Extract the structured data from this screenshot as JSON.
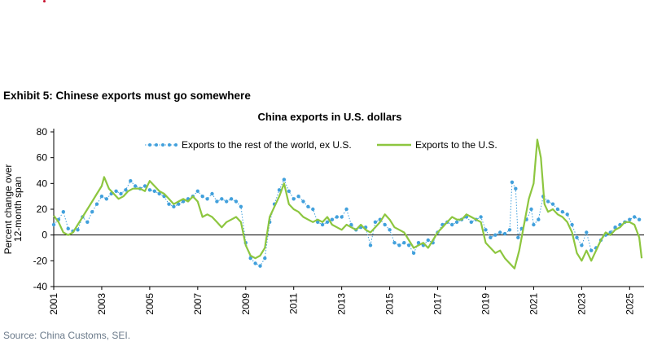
{
  "exhibit_title": "Exhibit 5: Chinese exports must go somewhere",
  "source": "Source: China Customs, SEI.",
  "colors": {
    "row_series": "#41a0dc",
    "us_series": "#8dc63f",
    "accent_dot": "#c8102e"
  },
  "chart_data": {
    "type": "line",
    "title": "China exports in U.S. dollars",
    "ylabel": "Percent change over 12-month span",
    "ylabel_lines": [
      "Percent change over",
      "12-month span"
    ],
    "ylim": [
      -40,
      80
    ],
    "yticks": [
      80,
      60,
      40,
      20,
      0,
      -20,
      -40
    ],
    "xlim": [
      2001,
      2025.6
    ],
    "xticks": [
      "2001",
      "2003",
      "2005",
      "2007",
      "2009",
      "2011",
      "2013",
      "2015",
      "2017",
      "2019",
      "2021",
      "2023",
      "2025"
    ],
    "grid": false,
    "legend_position": "top",
    "series": [
      {
        "name": "Exports to the rest of the world, ex U.S.",
        "style": "dotted-markers",
        "color": "#41a0dc",
        "points": [
          [
            2001.0,
            8
          ],
          [
            2001.2,
            12
          ],
          [
            2001.4,
            18
          ],
          [
            2001.6,
            5
          ],
          [
            2001.8,
            3
          ],
          [
            2002.0,
            4
          ],
          [
            2002.2,
            14
          ],
          [
            2002.4,
            10
          ],
          [
            2002.6,
            18
          ],
          [
            2002.8,
            24
          ],
          [
            2003.0,
            30
          ],
          [
            2003.2,
            28
          ],
          [
            2003.4,
            32
          ],
          [
            2003.6,
            34
          ],
          [
            2003.8,
            32
          ],
          [
            2004.0,
            35
          ],
          [
            2004.2,
            42
          ],
          [
            2004.4,
            38
          ],
          [
            2004.6,
            36
          ],
          [
            2004.8,
            38
          ],
          [
            2005.0,
            35
          ],
          [
            2005.2,
            34
          ],
          [
            2005.4,
            32
          ],
          [
            2005.6,
            30
          ],
          [
            2005.8,
            24
          ],
          [
            2006.0,
            22
          ],
          [
            2006.2,
            24
          ],
          [
            2006.4,
            26
          ],
          [
            2006.6,
            28
          ],
          [
            2006.8,
            30
          ],
          [
            2007.0,
            34
          ],
          [
            2007.2,
            30
          ],
          [
            2007.4,
            28
          ],
          [
            2007.6,
            32
          ],
          [
            2007.8,
            26
          ],
          [
            2008.0,
            28
          ],
          [
            2008.2,
            26
          ],
          [
            2008.4,
            28
          ],
          [
            2008.6,
            26
          ],
          [
            2008.8,
            22
          ],
          [
            2009.0,
            -6
          ],
          [
            2009.2,
            -18
          ],
          [
            2009.4,
            -22
          ],
          [
            2009.6,
            -24
          ],
          [
            2009.8,
            -18
          ],
          [
            2010.0,
            10
          ],
          [
            2010.2,
            24
          ],
          [
            2010.4,
            35
          ],
          [
            2010.6,
            43
          ],
          [
            2010.8,
            34
          ],
          [
            2011.0,
            28
          ],
          [
            2011.2,
            30
          ],
          [
            2011.4,
            26
          ],
          [
            2011.6,
            22
          ],
          [
            2011.8,
            20
          ],
          [
            2012.0,
            10
          ],
          [
            2012.2,
            8
          ],
          [
            2012.4,
            10
          ],
          [
            2012.6,
            12
          ],
          [
            2012.8,
            14
          ],
          [
            2013.0,
            14
          ],
          [
            2013.2,
            20
          ],
          [
            2013.4,
            8
          ],
          [
            2013.6,
            4
          ],
          [
            2013.8,
            6
          ],
          [
            2014.0,
            6
          ],
          [
            2014.2,
            -8
          ],
          [
            2014.4,
            10
          ],
          [
            2014.6,
            12
          ],
          [
            2014.8,
            8
          ],
          [
            2015.0,
            4
          ],
          [
            2015.2,
            -6
          ],
          [
            2015.4,
            -8
          ],
          [
            2015.6,
            -6
          ],
          [
            2015.8,
            -8
          ],
          [
            2016.0,
            -14
          ],
          [
            2016.2,
            -6
          ],
          [
            2016.4,
            -8
          ],
          [
            2016.6,
            -4
          ],
          [
            2016.8,
            -6
          ],
          [
            2017.0,
            2
          ],
          [
            2017.2,
            8
          ],
          [
            2017.4,
            10
          ],
          [
            2017.6,
            8
          ],
          [
            2017.8,
            10
          ],
          [
            2018.0,
            12
          ],
          [
            2018.2,
            14
          ],
          [
            2018.4,
            10
          ],
          [
            2018.6,
            12
          ],
          [
            2018.8,
            14
          ],
          [
            2019.0,
            4
          ],
          [
            2019.2,
            -2
          ],
          [
            2019.4,
            0
          ],
          [
            2019.6,
            2
          ],
          [
            2019.8,
            1
          ],
          [
            2020.0,
            4
          ],
          [
            2020.1,
            41
          ],
          [
            2020.25,
            36
          ],
          [
            2020.35,
            -2
          ],
          [
            2020.5,
            5
          ],
          [
            2020.7,
            12
          ],
          [
            2020.9,
            20
          ],
          [
            2021.0,
            8
          ],
          [
            2021.2,
            12
          ],
          [
            2021.4,
            30
          ],
          [
            2021.6,
            26
          ],
          [
            2021.8,
            24
          ],
          [
            2022.0,
            20
          ],
          [
            2022.2,
            18
          ],
          [
            2022.4,
            16
          ],
          [
            2022.6,
            8
          ],
          [
            2022.8,
            -2
          ],
          [
            2023.0,
            -8
          ],
          [
            2023.2,
            2
          ],
          [
            2023.4,
            -12
          ],
          [
            2023.6,
            -10
          ],
          [
            2023.8,
            -4
          ],
          [
            2024.0,
            0
          ],
          [
            2024.2,
            2
          ],
          [
            2024.4,
            6
          ],
          [
            2024.6,
            8
          ],
          [
            2024.8,
            10
          ],
          [
            2025.0,
            12
          ],
          [
            2025.2,
            14
          ],
          [
            2025.4,
            12
          ]
        ]
      },
      {
        "name": "Exports to the U.S.",
        "style": "solid",
        "color": "#8dc63f",
        "points": [
          [
            2001.0,
            15
          ],
          [
            2001.2,
            10
          ],
          [
            2001.4,
            2
          ],
          [
            2001.6,
            0
          ],
          [
            2001.8,
            2
          ],
          [
            2002.0,
            8
          ],
          [
            2002.2,
            14
          ],
          [
            2002.4,
            20
          ],
          [
            2002.6,
            26
          ],
          [
            2002.8,
            32
          ],
          [
            2003.0,
            38
          ],
          [
            2003.1,
            45
          ],
          [
            2003.3,
            36
          ],
          [
            2003.5,
            32
          ],
          [
            2003.7,
            28
          ],
          [
            2003.9,
            30
          ],
          [
            2004.1,
            34
          ],
          [
            2004.3,
            36
          ],
          [
            2004.6,
            36
          ],
          [
            2004.8,
            34
          ],
          [
            2005.0,
            42
          ],
          [
            2005.2,
            38
          ],
          [
            2005.4,
            34
          ],
          [
            2005.6,
            32
          ],
          [
            2005.8,
            28
          ],
          [
            2006.0,
            24
          ],
          [
            2006.2,
            26
          ],
          [
            2006.4,
            28
          ],
          [
            2006.6,
            26
          ],
          [
            2006.8,
            30
          ],
          [
            2007.0,
            26
          ],
          [
            2007.2,
            14
          ],
          [
            2007.4,
            16
          ],
          [
            2007.6,
            14
          ],
          [
            2007.8,
            10
          ],
          [
            2008.0,
            6
          ],
          [
            2008.2,
            10
          ],
          [
            2008.4,
            12
          ],
          [
            2008.6,
            14
          ],
          [
            2008.8,
            10
          ],
          [
            2009.0,
            -8
          ],
          [
            2009.2,
            -16
          ],
          [
            2009.4,
            -18
          ],
          [
            2009.6,
            -16
          ],
          [
            2009.8,
            -10
          ],
          [
            2010.0,
            14
          ],
          [
            2010.2,
            22
          ],
          [
            2010.4,
            30
          ],
          [
            2010.6,
            40
          ],
          [
            2010.8,
            24
          ],
          [
            2011.0,
            20
          ],
          [
            2011.2,
            18
          ],
          [
            2011.4,
            14
          ],
          [
            2011.6,
            12
          ],
          [
            2011.8,
            10
          ],
          [
            2012.0,
            12
          ],
          [
            2012.2,
            10
          ],
          [
            2012.4,
            14
          ],
          [
            2012.6,
            8
          ],
          [
            2012.8,
            6
          ],
          [
            2013.0,
            4
          ],
          [
            2013.2,
            8
          ],
          [
            2013.4,
            6
          ],
          [
            2013.6,
            4
          ],
          [
            2013.8,
            8
          ],
          [
            2014.0,
            4
          ],
          [
            2014.2,
            2
          ],
          [
            2014.4,
            6
          ],
          [
            2014.6,
            10
          ],
          [
            2014.8,
            16
          ],
          [
            2015.0,
            12
          ],
          [
            2015.2,
            6
          ],
          [
            2015.4,
            4
          ],
          [
            2015.6,
            2
          ],
          [
            2015.8,
            -4
          ],
          [
            2016.0,
            -10
          ],
          [
            2016.2,
            -8
          ],
          [
            2016.4,
            -6
          ],
          [
            2016.6,
            -10
          ],
          [
            2016.8,
            -4
          ],
          [
            2017.0,
            2
          ],
          [
            2017.2,
            6
          ],
          [
            2017.4,
            10
          ],
          [
            2017.6,
            14
          ],
          [
            2017.8,
            12
          ],
          [
            2018.0,
            12
          ],
          [
            2018.2,
            16
          ],
          [
            2018.4,
            14
          ],
          [
            2018.6,
            12
          ],
          [
            2018.8,
            10
          ],
          [
            2019.0,
            -6
          ],
          [
            2019.2,
            -10
          ],
          [
            2019.4,
            -14
          ],
          [
            2019.6,
            -12
          ],
          [
            2019.8,
            -18
          ],
          [
            2020.0,
            -22
          ],
          [
            2020.2,
            -26
          ],
          [
            2020.4,
            -12
          ],
          [
            2020.6,
            8
          ],
          [
            2020.8,
            28
          ],
          [
            2021.0,
            40
          ],
          [
            2021.15,
            74
          ],
          [
            2021.3,
            60
          ],
          [
            2021.45,
            24
          ],
          [
            2021.6,
            18
          ],
          [
            2021.8,
            20
          ],
          [
            2022.0,
            16
          ],
          [
            2022.2,
            14
          ],
          [
            2022.4,
            10
          ],
          [
            2022.6,
            2
          ],
          [
            2022.8,
            -14
          ],
          [
            2023.0,
            -20
          ],
          [
            2023.2,
            -12
          ],
          [
            2023.4,
            -20
          ],
          [
            2023.6,
            -12
          ],
          [
            2023.8,
            -4
          ],
          [
            2024.0,
            2
          ],
          [
            2024.2,
            0
          ],
          [
            2024.4,
            4
          ],
          [
            2024.6,
            6
          ],
          [
            2024.8,
            10
          ],
          [
            2025.0,
            10
          ],
          [
            2025.2,
            8
          ],
          [
            2025.4,
            -2
          ],
          [
            2025.5,
            -18
          ]
        ]
      }
    ]
  }
}
